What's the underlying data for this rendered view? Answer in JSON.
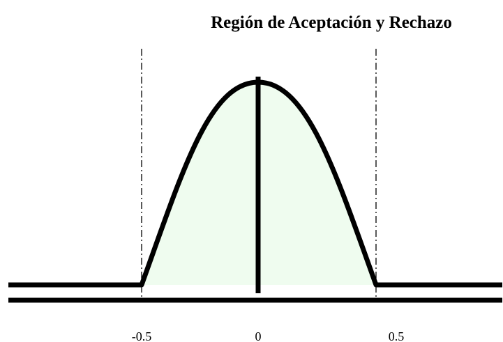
{
  "title": "Región de Aceptación y Rechazo",
  "axis_labels": [
    "-0.5",
    "0",
    "0.5"
  ]
}
